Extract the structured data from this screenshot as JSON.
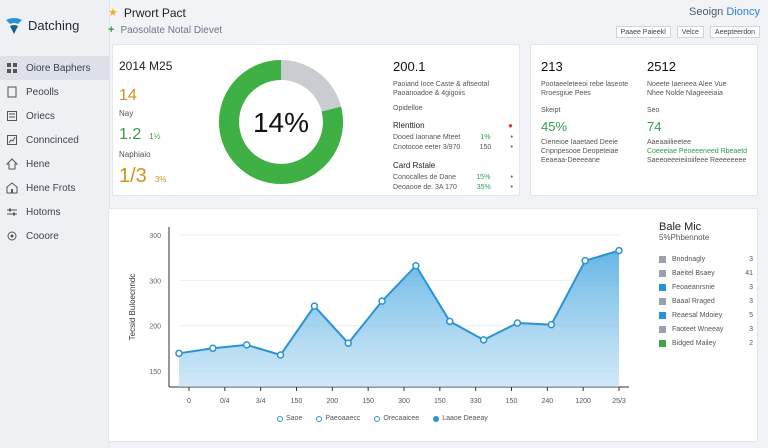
{
  "sidebar": {
    "brand": "Datching",
    "items": [
      {
        "label": "Oiore Baphers",
        "icon": "grid-icon",
        "active": true
      },
      {
        "label": "Peoolls",
        "icon": "document-icon"
      },
      {
        "label": "Oriecs",
        "icon": "list-icon"
      },
      {
        "label": "Conncinced",
        "icon": "chart-icon"
      },
      {
        "label": "Hene",
        "icon": "home-icon"
      },
      {
        "label": "Hene Frots",
        "icon": "house-icon"
      },
      {
        "label": "Hotoms",
        "icon": "sliders-icon"
      },
      {
        "label": "Cooore",
        "icon": "gear-icon"
      }
    ]
  },
  "header": {
    "title": "Prwort Pact",
    "subtitle": "Paosolate Notal Dievet",
    "brand_left": "Seoign",
    "brand_right": "Dioncy",
    "toolbar": [
      "Paaee Paieekl",
      "Velce",
      "Aeepteerdon"
    ]
  },
  "stats": {
    "heading": "2014 M25",
    "kpis": [
      {
        "value": "14",
        "label": "Nay",
        "color": "#d4911c"
      },
      {
        "value": "1.2",
        "pct": "1½",
        "label": "Naphiaio",
        "color": "#3a9a3f"
      },
      {
        "value": "1/3",
        "pct": "3%",
        "color": "#d4911c"
      }
    ],
    "donut": {
      "percent": 14,
      "label": "14%",
      "ring_color": "#3fb043",
      "rest_color": "#c9cdd2"
    },
    "mid": {
      "title": "200.1",
      "desc1": "Paoiand Ioce Caste & aftseotal",
      "desc2": "Paoanoadoe & 4gigoiis",
      "section0": "Opidelloe",
      "section1": "Rlenttion",
      "rows1": [
        {
          "label": "Dooed Iaonane Mteet",
          "value": "1%",
          "mark": "•"
        },
        {
          "label": "Cnotocoe eeter 3/970",
          "value": "150",
          "mark": "•"
        }
      ],
      "section2": "Card Rstale",
      "rows2": [
        {
          "label": "Conocalles de Dane",
          "value": "15%",
          "mark": "•"
        },
        {
          "label": "Deoaooe de. 3A 170",
          "value": "35%",
          "mark": "•"
        }
      ]
    }
  },
  "side": {
    "col1": {
      "title": "213",
      "desc": "Pootaeeleteeoi rebe laseote",
      "sub": "Rroesgiue Pees",
      "label": "Skeipt",
      "value": "45%",
      "lines": [
        "Cieneioe Iaaetaed Deeie",
        "Cnpnpesooe Deopeteiae",
        "Eeaeaa-Deeeeane"
      ]
    },
    "col2": {
      "title": "2512",
      "desc": "Noeete Iaeneea Alee Vue",
      "sub": "Nhee Nolde Nlageeeiaia",
      "label": "Seo",
      "value": "74",
      "lines": [
        "Aaeaaiilieetee",
        "Coeeeiae Peoeeeneed Rbeaetd",
        "Saeeoeeeieiioiifeee Reeeeeeee"
      ]
    }
  },
  "chart_data": {
    "type": "area",
    "ylabel": "Tecsid Buloecnndc",
    "x_ticks": [
      "0",
      "0/4",
      "3/4",
      "150",
      "200",
      "150",
      "300",
      "150",
      "330",
      "150",
      "240",
      "1200",
      "25/3"
    ],
    "y_ticks": [
      "300",
      "300",
      "200",
      "150"
    ],
    "series": [
      {
        "values": [
          40,
          46,
          50,
          38,
          96,
          52,
          102,
          144,
          78,
          56,
          76,
          74,
          150,
          162
        ]
      }
    ],
    "ylim": [
      0,
      190
    ],
    "legend": [
      {
        "label": "Saoe",
        "solid": false
      },
      {
        "label": "Paeoaaecc",
        "solid": false
      },
      {
        "label": "Orecaaicee",
        "solid": false
      },
      {
        "label": "Laaoe Deaeay",
        "solid": true
      }
    ],
    "side_title": "Bale Mic",
    "side_subtitle": "5%Phbennote",
    "side_items": [
      {
        "label": "Bnodnagly",
        "value": "3",
        "color": "#9aa3ad"
      },
      {
        "label": "Baeitel Bsaey",
        "value": "41",
        "color": "#9aa3ad"
      },
      {
        "label": "Feoaeanrsnie",
        "value": "3",
        "color": "#2a93d6"
      },
      {
        "label": "Baaal Rraged",
        "value": "3",
        "color": "#9aa3ad"
      },
      {
        "label": "Reaesal Mdoiey",
        "value": "5",
        "color": "#2a93d6"
      },
      {
        "label": "Faoteet Wneeay",
        "value": "3",
        "color": "#9aa3ad"
      },
      {
        "label": "Bidged Mailey",
        "value": "2",
        "color": "#3fa54a"
      }
    ]
  }
}
